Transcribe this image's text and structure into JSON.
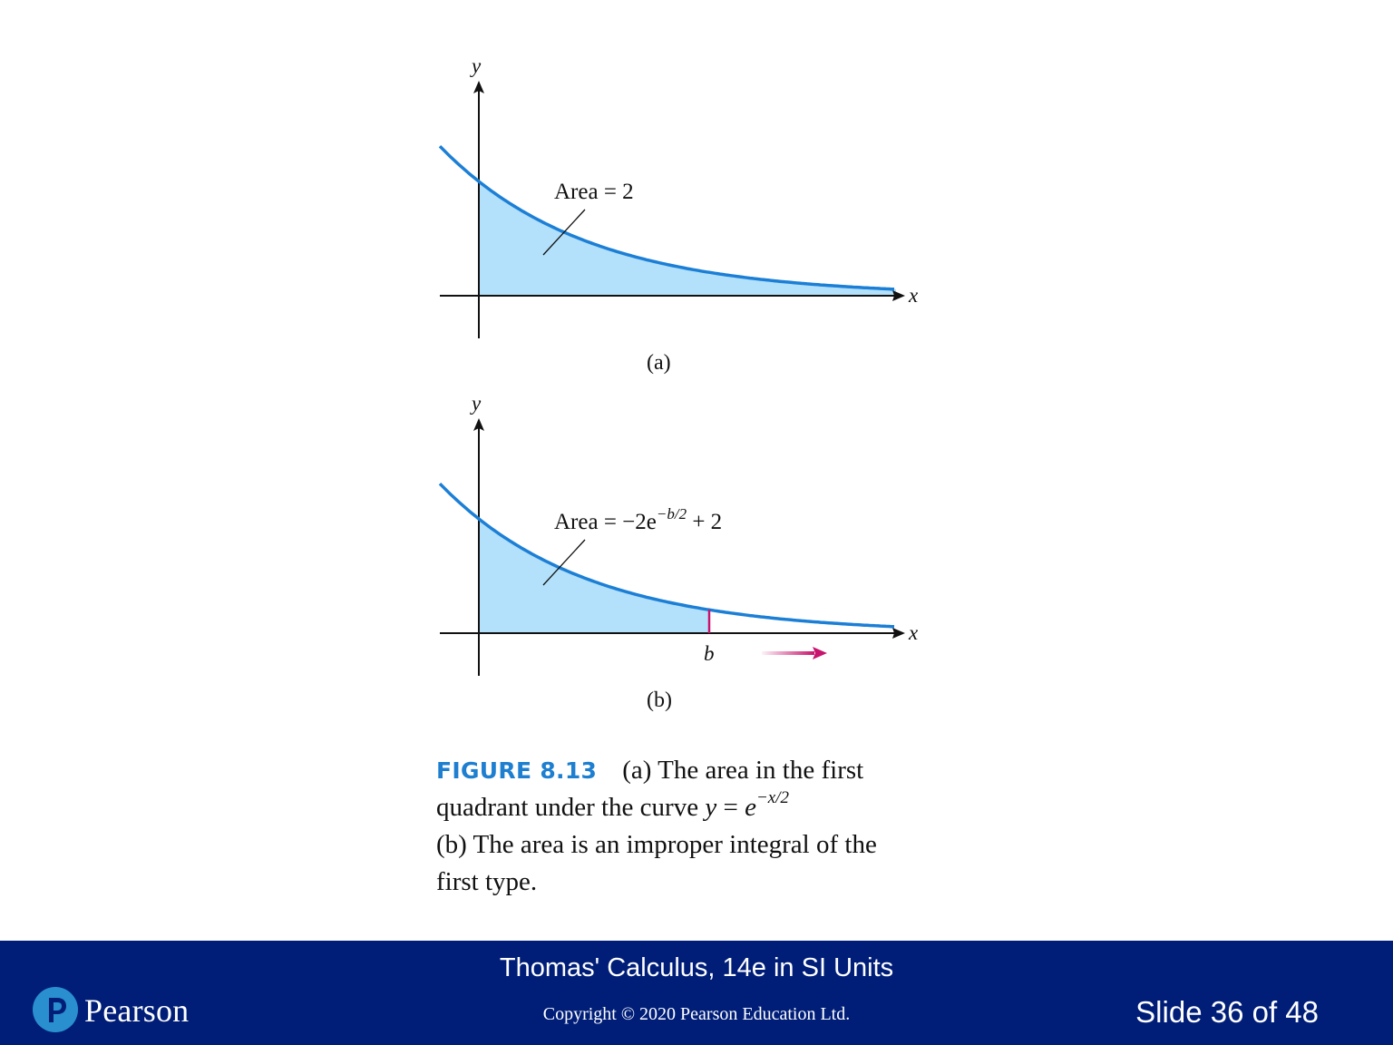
{
  "figure_a": {
    "y_axis_label": "y",
    "x_axis_label": "x",
    "area_label": "Area = 2",
    "panel_label": "(a)"
  },
  "figure_b": {
    "y_axis_label": "y",
    "x_axis_label": "x",
    "area_label_prefix": "Area = −2e",
    "area_label_exponent": "−b/2",
    "area_label_suffix": " + 2",
    "b_label": "b",
    "panel_label": "(b)"
  },
  "caption": {
    "figure_number": "FIGURE 8.13",
    "line1": "(a) The area in the first",
    "line2_text": "quadrant under the curve ",
    "line2_math_y": "y",
    "line2_math_eq": " = ",
    "line2_math_e": "e",
    "line2_math_exp": "−x/2",
    "line3": "(b) The area is an improper integral of the",
    "line4": "first type."
  },
  "footer": {
    "book_title": "Thomas' Calculus, 14e in SI Units",
    "copyright": "Copyright © 2020 Pearson Education Ltd.",
    "slide_number": "Slide 36 of 48",
    "logo_text": "Pearson"
  },
  "colors": {
    "curve": "#1c7fd6",
    "fill": "#b3e0fa",
    "b_marker": "#c8146e",
    "footer_bg": "#001e78",
    "logo_mark": "#2a8fcf",
    "caption_figure_number": "#1e7fd0"
  }
}
